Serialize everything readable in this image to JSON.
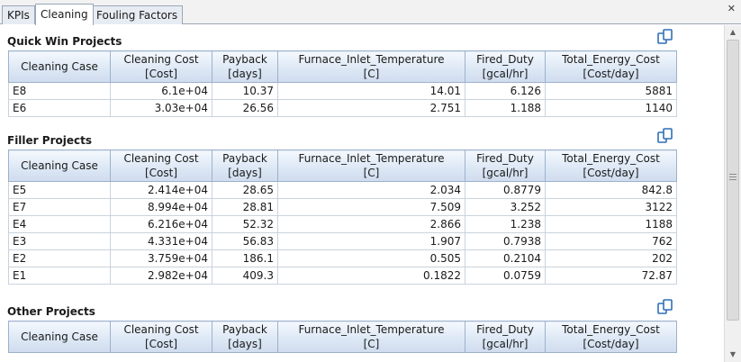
{
  "tabs": [
    {
      "label": "KPIs",
      "active": false
    },
    {
      "label": "Cleaning",
      "active": true
    },
    {
      "label": "Fouling Factors",
      "active": false
    }
  ],
  "close_glyph": "✕",
  "columns": [
    {
      "line1": "Cleaning Case",
      "line2": ""
    },
    {
      "line1": "Cleaning Cost",
      "line2": "[Cost]"
    },
    {
      "line1": "Payback",
      "line2": "[days]"
    },
    {
      "line1": "Furnace_Inlet_Temperature",
      "line2": "[C]"
    },
    {
      "line1": "Fired_Duty",
      "line2": "[gcal/hr]"
    },
    {
      "line1": "Total_Energy_Cost",
      "line2": "[Cost/day]"
    }
  ],
  "sections": {
    "quick_win": {
      "title": "Quick Win Projects",
      "rows": [
        [
          "E8",
          "6.1e+04",
          "10.37",
          "14.01",
          "6.126",
          "5881"
        ],
        [
          "E6",
          "3.03e+04",
          "26.56",
          "2.751",
          "1.188",
          "1140"
        ]
      ]
    },
    "filler": {
      "title": "Filler Projects",
      "rows": [
        [
          "E5",
          "2.414e+04",
          "28.65",
          "2.034",
          "0.8779",
          "842.8"
        ],
        [
          "E7",
          "8.994e+04",
          "28.81",
          "7.509",
          "3.252",
          "3122"
        ],
        [
          "E4",
          "6.216e+04",
          "52.32",
          "2.866",
          "1.238",
          "1188"
        ],
        [
          "E3",
          "4.331e+04",
          "56.83",
          "1.907",
          "0.7938",
          "762"
        ],
        [
          "E2",
          "3.759e+04",
          "186.1",
          "0.505",
          "0.2104",
          "202"
        ],
        [
          "E1",
          "2.982e+04",
          "409.3",
          "0.1822",
          "0.0759",
          "72.87"
        ]
      ]
    },
    "other": {
      "title": "Other Projects",
      "rows": []
    }
  },
  "scrollbar": {
    "up_glyph": "▲",
    "down_glyph": "▼"
  },
  "colors": {
    "icon_blue": "#2f6fb6",
    "header_border": "#9db1cc"
  }
}
